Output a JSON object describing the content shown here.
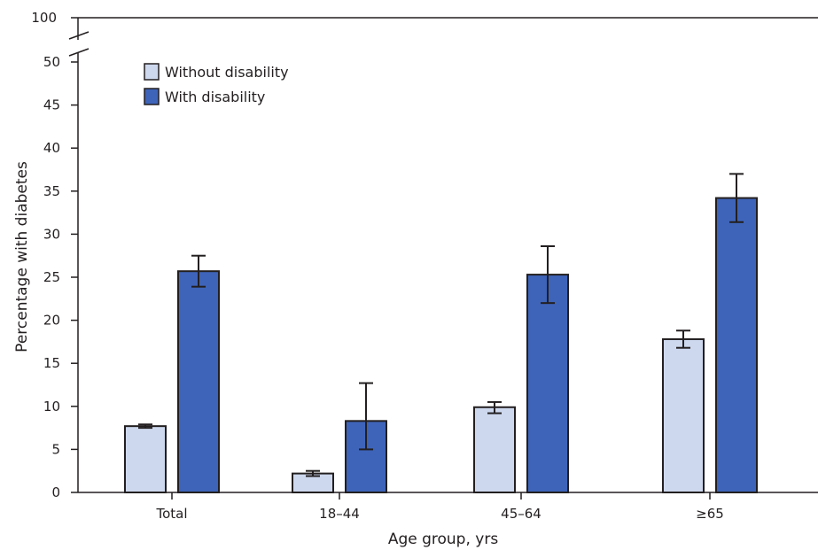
{
  "chart_data": {
    "type": "bar",
    "categories": [
      "Total",
      "18–44",
      "45–64",
      "≥65"
    ],
    "series": [
      {
        "name": "Without disability",
        "values": [
          7.7,
          2.2,
          9.9,
          17.8
        ],
        "error_low": [
          7.5,
          1.9,
          9.2,
          16.8
        ],
        "error_high": [
          7.9,
          2.5,
          10.5,
          18.8
        ],
        "color": "#cdd8ee"
      },
      {
        "name": "With disability",
        "values": [
          25.7,
          8.3,
          25.3,
          34.2
        ],
        "error_low": [
          23.9,
          5.0,
          22.0,
          31.4
        ],
        "error_high": [
          27.5,
          12.7,
          28.6,
          37.0
        ],
        "color": "#3e64b9"
      }
    ],
    "xlabel": "Age group, yrs",
    "ylabel": "Percentage with diabetes",
    "ylim": [
      0,
      50
    ],
    "yticks": [
      "0",
      "5",
      "10",
      "15",
      "20",
      "25",
      "30",
      "35",
      "40",
      "45",
      "50"
    ],
    "axis_break_label": "100",
    "legend_position": "top-left",
    "grid": false
  }
}
